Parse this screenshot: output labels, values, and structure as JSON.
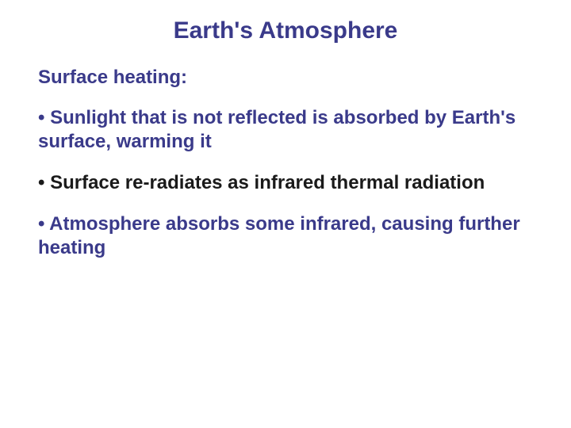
{
  "title": {
    "text": "Earth's Atmosphere",
    "color": "#3a3a8a",
    "fontsize": 30
  },
  "subheading": {
    "text": "Surface heating:",
    "color": "#3a3a8a",
    "fontsize": 24
  },
  "bullets": [
    {
      "text": "• Sunlight that is not reflected is absorbed by Earth's surface, warming it",
      "color": "#3a3a8a",
      "fontsize": 24
    },
    {
      "text": "• Surface re-radiates as infrared thermal radiation",
      "color": "#1a1a1a",
      "fontsize": 24
    },
    {
      "text": "• Atmosphere absorbs some infrared, causing further heating",
      "color": "#3a3a8a",
      "fontsize": 24
    }
  ],
  "background_color": "#ffffff",
  "font_family": "Arial, Helvetica, sans-serif"
}
